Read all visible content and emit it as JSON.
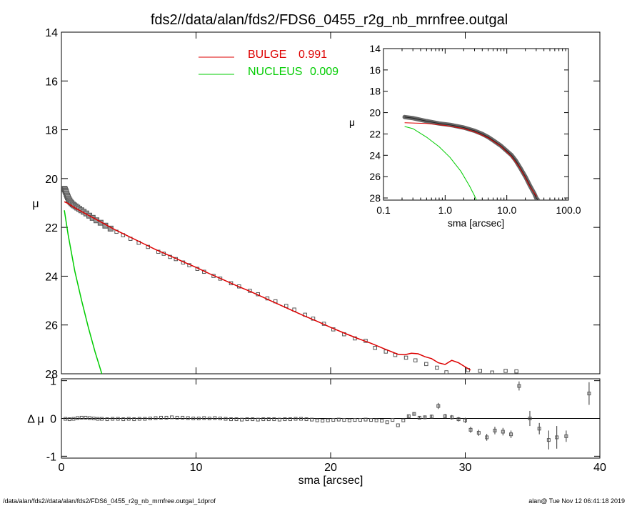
{
  "footer": {
    "left": "/data/alan/fds2//data/alan/fds2/FDS6_0455_r2g_nb_mrnfree.outgal_1dprof",
    "right": "alan@  Tue Nov 12 06:41:18 2019"
  },
  "colors": {
    "bulge": "#dd0000",
    "nucleus": "#00cc00",
    "data": "#555555",
    "frame": "#000000"
  },
  "chart_data": [
    {
      "id": "main",
      "type": "scatter",
      "title": "fds2//data/alan/fds2/FDS6_0455_r2g_nb_mrnfree.outgal",
      "xlabel": "",
      "ylabel": "μ",
      "xlim": [
        0,
        40
      ],
      "ylim": [
        28,
        14
      ],
      "yticks": [
        14,
        16,
        18,
        20,
        22,
        24,
        26,
        28
      ],
      "xticks": [
        0,
        10,
        20,
        30,
        40
      ],
      "xticklabels_shown": false,
      "legend": [
        {
          "name": "BULGE",
          "value": "0.991",
          "color": "#dd0000"
        },
        {
          "name": "NUCLEUS",
          "value": "0.009",
          "color": "#00cc00"
        }
      ],
      "data_points": {
        "x": [
          0.22,
          0.26,
          0.3,
          0.34,
          0.38,
          0.43,
          0.48,
          0.54,
          0.6,
          0.67,
          0.75,
          0.84,
          0.94,
          1.05,
          1.18,
          1.32,
          1.48,
          1.65,
          1.85,
          2.07,
          2.32,
          2.6,
          2.91,
          3.26,
          3.65,
          4.09,
          4.58,
          5.13,
          5.74,
          6.43,
          7.2,
          7.6,
          8.07,
          8.5,
          9.04,
          9.5,
          10.1,
          10.6,
          11.3,
          11.8,
          12.6,
          13.2,
          14.0,
          14.6,
          15.3,
          15.9,
          16.7,
          17.3,
          18.1,
          18.7,
          19.5,
          20.2,
          21.0,
          21.8,
          22.6,
          23.3,
          24.1,
          24.8,
          25.6,
          26.3,
          27.1,
          27.9,
          28.6,
          29.4,
          30.2,
          31.1,
          32.0,
          33.0,
          33.8
        ],
        "y": [
          20.42,
          20.45,
          20.5,
          20.56,
          20.63,
          20.7,
          20.77,
          20.84,
          20.9,
          20.96,
          21.01,
          21.06,
          21.1,
          21.14,
          21.19,
          21.24,
          21.3,
          21.36,
          21.43,
          21.52,
          21.61,
          21.71,
          21.81,
          21.93,
          22.05,
          22.18,
          22.32,
          22.47,
          22.63,
          22.8,
          23.0,
          23.08,
          23.21,
          23.3,
          23.44,
          23.55,
          23.7,
          23.82,
          23.99,
          24.1,
          24.29,
          24.42,
          24.6,
          24.74,
          24.91,
          25.03,
          25.22,
          25.37,
          25.58,
          25.74,
          25.95,
          26.18,
          26.38,
          26.55,
          26.65,
          26.94,
          27.09,
          27.23,
          27.34,
          27.45,
          27.6,
          27.75,
          27.94,
          28.08,
          27.85,
          27.88,
          27.95,
          27.88,
          27.9
        ]
      },
      "bulge": {
        "x": [
          0.22,
          0.5,
          1,
          2,
          3,
          4,
          5,
          6,
          7,
          8,
          9,
          10,
          11,
          12,
          13,
          14,
          15,
          16,
          17,
          18,
          19,
          20,
          21,
          22,
          23,
          24,
          25,
          25.5,
          26,
          26.5,
          27,
          27.5,
          28,
          28.5,
          29,
          29.5,
          30,
          30.4
        ],
        "y": [
          20.95,
          21.02,
          21.2,
          21.5,
          21.8,
          22.1,
          22.37,
          22.64,
          22.91,
          23.15,
          23.4,
          23.64,
          23.9,
          24.14,
          24.39,
          24.62,
          24.87,
          25.12,
          25.37,
          25.62,
          25.85,
          26.1,
          26.33,
          26.55,
          26.75,
          26.98,
          27.2,
          27.22,
          27.16,
          27.18,
          27.3,
          27.38,
          27.55,
          27.62,
          27.45,
          27.55,
          27.72,
          27.85
        ]
      },
      "nucleus": {
        "x": [
          0.22,
          0.5,
          1,
          1.5,
          2,
          2.5,
          3,
          3.22
        ],
        "y": [
          21.3,
          22.3,
          23.8,
          25.0,
          26.1,
          27.1,
          28.0,
          28.6
        ]
      }
    },
    {
      "id": "inset",
      "type": "line",
      "xlabel": "sma [arcsec]",
      "ylabel": "μ",
      "xscale": "log",
      "xlim": [
        0.1,
        100
      ],
      "ylim": [
        28.2,
        14
      ],
      "xticks": [
        0.1,
        1.0,
        10.0,
        100.0
      ],
      "xticklabels": [
        "0.1",
        "1.0",
        "10.0",
        "100.0"
      ],
      "yticks": [
        14,
        16,
        18,
        20,
        22,
        24,
        26,
        28
      ],
      "data_points": {
        "x": [
          0.22,
          0.3,
          0.5,
          0.8,
          1.2,
          2,
          3,
          4,
          5,
          6,
          8,
          10,
          12,
          14,
          17,
          20,
          24,
          28,
          30,
          32
        ],
        "y": [
          20.42,
          20.52,
          20.8,
          21.02,
          21.15,
          21.4,
          21.7,
          22.0,
          22.3,
          22.6,
          23.1,
          23.6,
          24.0,
          24.5,
          25.3,
          26.0,
          26.9,
          27.6,
          28.0,
          28.2
        ]
      },
      "bulge": {
        "x": [
          0.22,
          0.5,
          1,
          2,
          3,
          5,
          8,
          12,
          16,
          20,
          24,
          28,
          30.4
        ],
        "y": [
          20.95,
          21.02,
          21.2,
          21.5,
          21.8,
          22.37,
          23.15,
          24.14,
          25.12,
          26.1,
          26.98,
          27.55,
          27.85
        ]
      },
      "nucleus": {
        "x": [
          0.22,
          0.3,
          0.5,
          0.8,
          1.2,
          1.8,
          2.5,
          3.0,
          3.22
        ],
        "y": [
          21.3,
          21.5,
          22.3,
          23.2,
          24.2,
          25.5,
          26.9,
          27.8,
          28.2
        ]
      }
    },
    {
      "id": "residuals",
      "type": "scatter",
      "xlabel": "sma [arcsec]",
      "ylabel": "Δ μ",
      "xlim": [
        0,
        40
      ],
      "ylim": [
        -1.05,
        1.05
      ],
      "xticks": [
        0,
        10,
        20,
        30,
        40
      ],
      "xticklabels": [
        "0",
        "10",
        "20",
        "30",
        "40"
      ],
      "yticks": [
        -1,
        0,
        1
      ],
      "yticklabels": [
        "-1",
        "0",
        "1"
      ],
      "points": {
        "x": [
          0.3,
          0.6,
          0.9,
          1.2,
          1.5,
          1.8,
          2.1,
          2.4,
          2.7,
          3.0,
          3.4,
          3.8,
          4.2,
          4.6,
          5.0,
          5.4,
          5.8,
          6.2,
          6.6,
          7.0,
          7.4,
          7.8,
          8.2,
          8.6,
          9.0,
          9.4,
          9.8,
          10.2,
          10.6,
          11.0,
          11.4,
          11.8,
          12.2,
          12.6,
          13.0,
          13.4,
          13.8,
          14.2,
          14.6,
          15.0,
          15.4,
          15.8,
          16.2,
          16.6,
          17.0,
          17.4,
          17.8,
          18.2,
          18.6,
          19.0,
          19.4,
          19.8,
          20.2,
          20.6,
          21.0,
          21.4,
          21.8,
          22.2,
          22.6,
          23.0,
          23.4,
          23.8,
          24.2,
          24.6,
          25.0,
          25.4,
          25.8,
          26.2,
          26.6,
          27.0,
          27.5,
          28.0,
          28.5,
          29.0,
          29.5,
          30.0,
          30.4,
          31.0,
          31.6,
          32.2,
          32.8,
          33.4,
          34.0,
          34.8,
          35.5,
          36.2,
          36.8,
          37.5,
          39.2
        ],
        "y": [
          -0.01,
          -0.02,
          -0.01,
          0.01,
          0.02,
          0.02,
          0.01,
          0.0,
          -0.01,
          -0.01,
          -0.02,
          -0.01,
          -0.01,
          -0.02,
          -0.01,
          -0.02,
          -0.01,
          -0.01,
          0.0,
          0.01,
          0.02,
          0.02,
          0.03,
          0.02,
          0.02,
          0.01,
          0.0,
          0.0,
          0.01,
          0.0,
          0.01,
          0.0,
          -0.01,
          -0.02,
          -0.02,
          -0.03,
          -0.02,
          -0.02,
          -0.03,
          -0.02,
          -0.02,
          -0.02,
          -0.03,
          -0.02,
          -0.02,
          -0.01,
          -0.01,
          -0.02,
          -0.03,
          -0.05,
          -0.06,
          -0.05,
          -0.04,
          -0.03,
          -0.04,
          -0.05,
          -0.04,
          -0.04,
          -0.03,
          -0.04,
          -0.05,
          -0.06,
          -0.1,
          -0.04,
          -0.18,
          -0.05,
          0.06,
          0.12,
          0.02,
          0.03,
          0.05,
          0.33,
          0.06,
          0.03,
          -0.02,
          -0.05,
          -0.3,
          -0.38,
          -0.5,
          -0.32,
          -0.35,
          -0.42,
          0.86,
          0.0,
          -0.27,
          -0.57,
          -0.5,
          -0.47,
          0.66
        ],
        "err": [
          0.02,
          0.02,
          0.02,
          0.02,
          0.02,
          0.02,
          0.02,
          0.02,
          0.02,
          0.02,
          0.02,
          0.02,
          0.02,
          0.02,
          0.02,
          0.02,
          0.02,
          0.02,
          0.02,
          0.02,
          0.02,
          0.02,
          0.02,
          0.02,
          0.02,
          0.02,
          0.02,
          0.02,
          0.02,
          0.02,
          0.02,
          0.02,
          0.02,
          0.02,
          0.02,
          0.02,
          0.02,
          0.02,
          0.02,
          0.02,
          0.02,
          0.02,
          0.02,
          0.02,
          0.02,
          0.02,
          0.02,
          0.02,
          0.02,
          0.02,
          0.02,
          0.02,
          0.02,
          0.02,
          0.02,
          0.02,
          0.02,
          0.02,
          0.02,
          0.02,
          0.02,
          0.02,
          0.03,
          0.03,
          0.03,
          0.03,
          0.04,
          0.04,
          0.04,
          0.05,
          0.05,
          0.08,
          0.06,
          0.06,
          0.06,
          0.07,
          0.08,
          0.08,
          0.09,
          0.1,
          0.1,
          0.1,
          0.12,
          0.2,
          0.15,
          0.25,
          0.3,
          0.15,
          0.3
        ]
      }
    }
  ]
}
